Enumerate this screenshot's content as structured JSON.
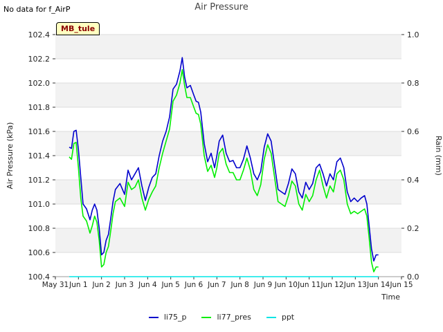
{
  "header": {
    "note": "No data for f_AirP",
    "title": "Air Pressure",
    "tag": "MB_tule"
  },
  "chart_data": {
    "type": "line",
    "title": "Air Pressure",
    "xlabel": "Time",
    "ylabel": "Air Pressure (kPa)",
    "ylabel_right": "Rain (mm)",
    "xlim": [
      0,
      15
    ],
    "ylim": [
      100.4,
      102.4
    ],
    "ylim_right": [
      0.0,
      1.0
    ],
    "x_ticks": [
      0,
      1,
      2,
      3,
      4,
      5,
      6,
      7,
      8,
      9,
      10,
      11,
      12,
      13,
      14,
      15
    ],
    "x_tick_labels": [
      "May 31",
      "Jun 1",
      "Jun 2",
      "Jun 3",
      "Jun 4",
      "Jun 5",
      "Jun 6",
      "Jun 7",
      "Jun 8",
      "Jun 9",
      "Jun 10",
      "Jun 11",
      "Jun 12",
      "Jun 13",
      "Jun 14",
      "Jun 15"
    ],
    "y_ticks": [
      100.4,
      100.6,
      100.8,
      101.0,
      101.2,
      101.4,
      101.6,
      101.8,
      102.0,
      102.2,
      102.4
    ],
    "y_tick_labels": [
      "100.4",
      "100.6",
      "100.8",
      "101.0",
      "101.2",
      "101.4",
      "101.6",
      "101.8",
      "102.0",
      "102.2",
      "102.4"
    ],
    "y_ticks_right": [
      0.0,
      0.2,
      0.4,
      0.6,
      0.8,
      1.0
    ],
    "y_tick_labels_right": [
      "0.0",
      "0.2",
      "0.4",
      "0.6",
      "0.8",
      "1.0"
    ],
    "band_shading": true,
    "legend_position": "bottom-center",
    "series": [
      {
        "name": "li75_p",
        "color": "#0000cc",
        "axis": "left",
        "x": [
          0.6,
          0.7,
          0.8,
          0.9,
          1.0,
          1.1,
          1.2,
          1.35,
          1.5,
          1.6,
          1.7,
          1.8,
          1.9,
          2.0,
          2.1,
          2.2,
          2.3,
          2.4,
          2.5,
          2.6,
          2.8,
          3.0,
          3.15,
          3.3,
          3.45,
          3.6,
          3.75,
          3.9,
          4.05,
          4.2,
          4.35,
          4.5,
          4.65,
          4.8,
          4.95,
          5.1,
          5.25,
          5.4,
          5.5,
          5.6,
          5.7,
          5.85,
          6.0,
          6.1,
          6.2,
          6.3,
          6.45,
          6.6,
          6.75,
          6.9,
          7.0,
          7.1,
          7.25,
          7.4,
          7.55,
          7.7,
          7.85,
          8.0,
          8.15,
          8.3,
          8.45,
          8.6,
          8.75,
          8.9,
          9.05,
          9.2,
          9.35,
          9.5,
          9.65,
          9.8,
          9.95,
          10.1,
          10.25,
          10.4,
          10.55,
          10.7,
          10.85,
          11.0,
          11.15,
          11.3,
          11.45,
          11.6,
          11.75,
          11.9,
          12.05,
          12.2,
          12.35,
          12.5,
          12.65,
          12.8,
          12.95,
          13.1,
          13.25,
          13.4,
          13.5,
          13.6,
          13.7,
          13.8,
          13.9,
          14.0
        ],
        "y": [
          101.47,
          101.46,
          101.6,
          101.61,
          101.45,
          101.22,
          101.0,
          100.96,
          100.87,
          100.95,
          101.0,
          100.95,
          100.8,
          100.58,
          100.6,
          100.7,
          100.75,
          100.88,
          101.02,
          101.12,
          101.17,
          101.08,
          101.28,
          101.2,
          101.25,
          101.3,
          101.15,
          101.03,
          101.14,
          101.22,
          101.25,
          101.4,
          101.52,
          101.6,
          101.72,
          101.95,
          101.99,
          102.1,
          102.21,
          102.05,
          101.96,
          101.98,
          101.9,
          101.85,
          101.84,
          101.76,
          101.5,
          101.35,
          101.42,
          101.3,
          101.4,
          101.52,
          101.57,
          101.42,
          101.35,
          101.36,
          101.3,
          101.3,
          101.37,
          101.48,
          101.38,
          101.25,
          101.2,
          101.27,
          101.47,
          101.58,
          101.52,
          101.32,
          101.12,
          101.1,
          101.08,
          101.17,
          101.29,
          101.25,
          101.1,
          101.05,
          101.18,
          101.12,
          101.17,
          101.3,
          101.33,
          101.25,
          101.15,
          101.25,
          101.2,
          101.35,
          101.38,
          101.3,
          101.1,
          101.02,
          101.05,
          101.02,
          101.05,
          101.07,
          101.0,
          100.82,
          100.63,
          100.53,
          100.58,
          100.58
        ]
      },
      {
        "name": "li77_pres",
        "color": "#00ee00",
        "axis": "left",
        "x": [
          0.6,
          0.7,
          0.8,
          0.9,
          1.0,
          1.1,
          1.2,
          1.35,
          1.5,
          1.6,
          1.7,
          1.8,
          1.9,
          2.0,
          2.1,
          2.2,
          2.3,
          2.4,
          2.5,
          2.6,
          2.8,
          3.0,
          3.15,
          3.3,
          3.45,
          3.6,
          3.75,
          3.9,
          4.05,
          4.2,
          4.35,
          4.5,
          4.65,
          4.8,
          4.95,
          5.1,
          5.25,
          5.4,
          5.5,
          5.6,
          5.7,
          5.85,
          6.0,
          6.1,
          6.2,
          6.3,
          6.45,
          6.6,
          6.75,
          6.9,
          7.0,
          7.1,
          7.25,
          7.4,
          7.55,
          7.7,
          7.85,
          8.0,
          8.15,
          8.3,
          8.45,
          8.6,
          8.75,
          8.9,
          9.05,
          9.2,
          9.35,
          9.5,
          9.65,
          9.8,
          9.95,
          10.1,
          10.25,
          10.4,
          10.55,
          10.7,
          10.85,
          11.0,
          11.15,
          11.3,
          11.45,
          11.6,
          11.75,
          11.9,
          12.05,
          12.2,
          12.35,
          12.5,
          12.65,
          12.8,
          12.95,
          13.1,
          13.25,
          13.4,
          13.5,
          13.6,
          13.7,
          13.8,
          13.9,
          14.0
        ],
        "y": [
          101.39,
          101.37,
          101.5,
          101.51,
          101.3,
          101.05,
          100.9,
          100.86,
          100.76,
          100.82,
          100.9,
          100.85,
          100.7,
          100.48,
          100.5,
          100.6,
          100.65,
          100.78,
          100.92,
          101.02,
          101.05,
          100.98,
          101.18,
          101.12,
          101.14,
          101.2,
          101.05,
          100.95,
          101.04,
          101.1,
          101.15,
          101.3,
          101.42,
          101.52,
          101.62,
          101.85,
          101.9,
          102.0,
          102.11,
          101.98,
          101.88,
          101.88,
          101.8,
          101.75,
          101.74,
          101.66,
          101.4,
          101.27,
          101.32,
          101.22,
          101.3,
          101.42,
          101.46,
          101.33,
          101.26,
          101.26,
          101.2,
          101.2,
          101.28,
          101.38,
          101.28,
          101.12,
          101.07,
          101.16,
          101.37,
          101.49,
          101.42,
          101.22,
          101.02,
          101.0,
          100.98,
          101.07,
          101.19,
          101.15,
          101.0,
          100.95,
          101.08,
          101.02,
          101.07,
          101.2,
          101.28,
          101.15,
          101.05,
          101.15,
          101.1,
          101.25,
          101.28,
          101.2,
          101.0,
          100.92,
          100.94,
          100.92,
          100.94,
          100.96,
          100.9,
          100.72,
          100.52,
          100.44,
          100.48,
          100.48
        ]
      },
      {
        "name": "ppt",
        "color": "#00e5e5",
        "axis": "right",
        "x": [
          0.6,
          14.0
        ],
        "y": [
          0.0,
          0.0
        ]
      }
    ]
  }
}
